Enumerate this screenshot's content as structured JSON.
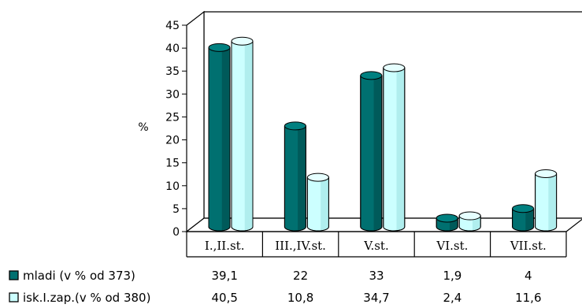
{
  "chart_data": {
    "type": "bar",
    "ylabel": "%",
    "ylim": [
      0,
      45
    ],
    "ytick_step": 5,
    "categories": [
      "I.,II.st.",
      "III.,IV.st.",
      "V.st.",
      "VI.st.",
      "VII.st."
    ],
    "series": [
      {
        "name": "mladi (v % od 373)",
        "values": [
          39.1,
          22,
          33,
          1.9,
          4
        ],
        "display_values": [
          "39,1",
          "22",
          "33",
          "1,9",
          "4"
        ],
        "color": "#007070",
        "color_dark": "#004848",
        "color_top": "#008080"
      },
      {
        "name": "isk.I.zap.(v % od 380)",
        "values": [
          40.5,
          10.8,
          34.7,
          2.4,
          11.6
        ],
        "display_values": [
          "40,5",
          "10,8",
          "34,7",
          "2,4",
          "11,6"
        ],
        "color": "#ccffff",
        "color_dark": "#99e0e0",
        "color_top": "#e6ffff"
      }
    ],
    "grid": false,
    "legend_position": "bottom-left",
    "data_table": true
  }
}
